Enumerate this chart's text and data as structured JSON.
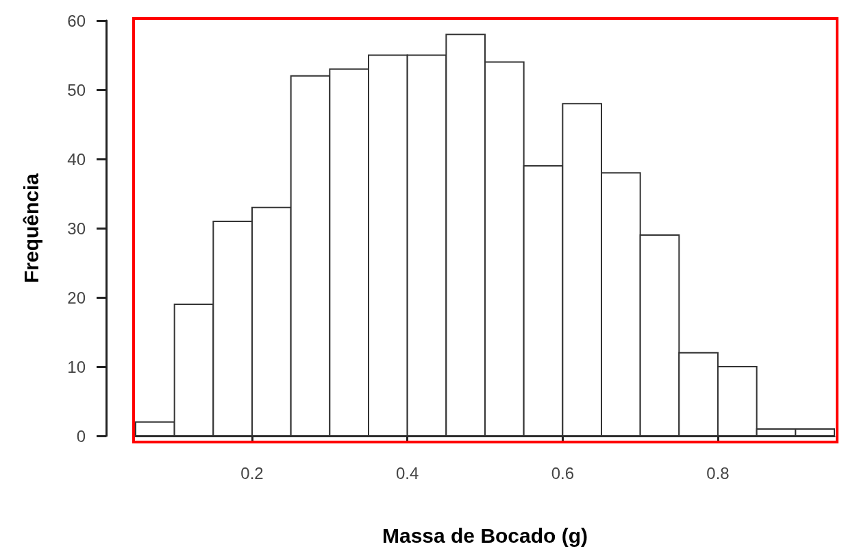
{
  "chart_data": {
    "type": "histogram",
    "xlabel": "Massa de Bocado (g)",
    "ylabel": "Frequência",
    "bins": [
      0.05,
      0.1,
      0.15,
      0.2,
      0.25,
      0.3,
      0.35,
      0.4,
      0.45,
      0.5,
      0.55,
      0.6,
      0.65,
      0.7,
      0.75,
      0.8,
      0.85,
      0.9,
      0.95
    ],
    "values": [
      2,
      19,
      31,
      33,
      52,
      53,
      55,
      55,
      58,
      54,
      39,
      48,
      38,
      29,
      12,
      10,
      1,
      1
    ],
    "color": "#ffffff",
    "xlim": [
      0.05,
      0.95
    ],
    "xticks": [
      0.2,
      0.4,
      0.6,
      0.8
    ],
    "ylim": [
      0,
      60
    ],
    "yticks": [
      0,
      10,
      20,
      30,
      40,
      50,
      60
    ],
    "grid": false
  }
}
